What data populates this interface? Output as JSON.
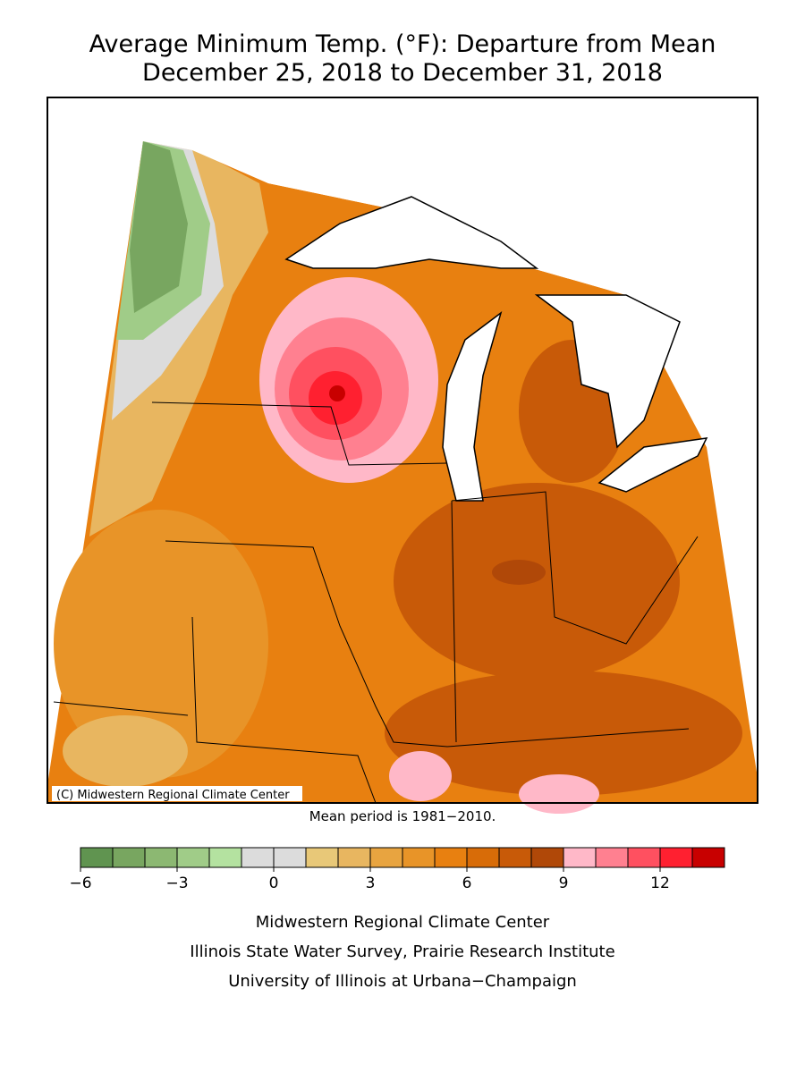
{
  "header": {
    "title_line1": "Average Minimum Temp. (°F): Departure from Mean",
    "title_line2": "December 25, 2018 to December 31, 2018"
  },
  "map": {
    "credit": "(C) Midwestern Regional Climate Center",
    "note": "Mean period is 1981−2010."
  },
  "legend": {
    "colorbar": {
      "bounds": [
        -6,
        -5,
        -4,
        -3,
        -2,
        -1,
        0,
        1,
        2,
        3,
        4,
        5,
        6,
        7,
        8,
        9,
        10,
        11,
        12,
        13,
        14
      ],
      "colors": [
        "#609450",
        "#78a660",
        "#8cb872",
        "#a0cc88",
        "#b4e2a0",
        "#dcdcdc",
        "#dcdcdc",
        "#e8c878",
        "#e8b660",
        "#e8a440",
        "#e89428",
        "#e88010",
        "#d86c08",
        "#c85a08",
        "#b04808",
        "#ffb8c8",
        "#ff8090",
        "#ff5060",
        "#ff2030",
        "#c80000"
      ],
      "ticks": [
        {
          "value": -6,
          "label": "−6"
        },
        {
          "value": -3,
          "label": "−3"
        },
        0,
        3,
        6,
        9,
        12
      ]
    }
  },
  "footer": {
    "line1": "Midwestern Regional Climate Center",
    "line2": "Illinois State Water Survey, Prairie Research Institute",
    "line3": "University of Illinois at Urbana−Champaign"
  }
}
